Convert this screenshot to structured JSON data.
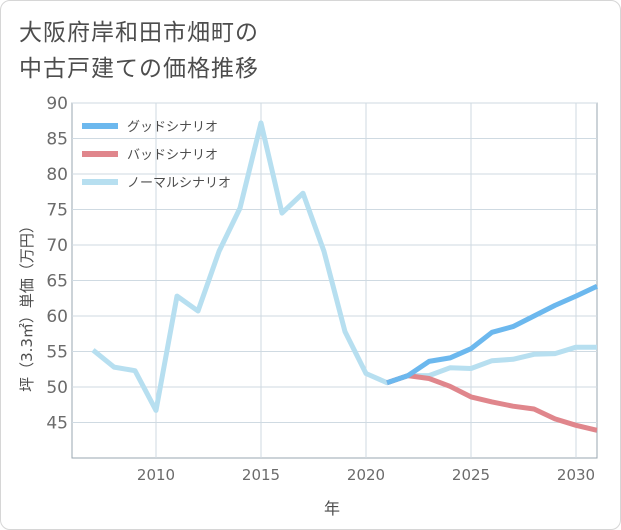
{
  "title": {
    "line1": "大阪府岸和田市畑町の",
    "line2": "中古戸建ての価格推移"
  },
  "chart_data": {
    "type": "line",
    "title": "大阪府岸和田市畑町の中古戸建ての価格推移",
    "xlabel": "年",
    "ylabel": "坪（3.3㎡）単価（万円）",
    "xlim": [
      2006,
      2031
    ],
    "ylim": [
      40,
      90
    ],
    "xticks": [
      2010,
      2015,
      2020,
      2025,
      2030
    ],
    "yticks": [
      45,
      50,
      55,
      60,
      65,
      70,
      75,
      80,
      85,
      90
    ],
    "grid": true,
    "legend_position": "top-left",
    "series": [
      {
        "name": "グッドシナリオ",
        "color": "#6cb8ee",
        "x": [
          2021,
          2022,
          2023,
          2024,
          2025,
          2026,
          2027,
          2028,
          2029,
          2030,
          2031
        ],
        "y": [
          50.6,
          51.6,
          53.6,
          54.1,
          55.4,
          57.7,
          58.5,
          60.0,
          61.5,
          62.8,
          64.2
        ]
      },
      {
        "name": "バッドシナリオ",
        "color": "#e0868c",
        "x": [
          2021,
          2022,
          2023,
          2024,
          2025,
          2026,
          2027,
          2028,
          2029,
          2030,
          2031
        ],
        "y": [
          50.6,
          51.6,
          51.2,
          50.1,
          48.6,
          47.9,
          47.3,
          46.9,
          45.5,
          44.6,
          43.9
        ]
      },
      {
        "name": "ノーマルシナリオ",
        "color": "#b7dff0",
        "x": [
          2007,
          2008,
          2009,
          2010,
          2011,
          2012,
          2013,
          2014,
          2015,
          2016,
          2017,
          2018,
          2019,
          2020,
          2021,
          2022,
          2023,
          2024,
          2025,
          2026,
          2027,
          2028,
          2029,
          2030,
          2031
        ],
        "y": [
          55.2,
          52.8,
          52.3,
          46.7,
          62.8,
          60.7,
          69.1,
          75.2,
          87.2,
          74.5,
          77.3,
          69.1,
          57.8,
          51.9,
          50.6,
          51.6,
          51.6,
          52.7,
          52.6,
          53.7,
          53.9,
          54.6,
          54.7,
          55.6,
          55.6
        ]
      }
    ]
  }
}
